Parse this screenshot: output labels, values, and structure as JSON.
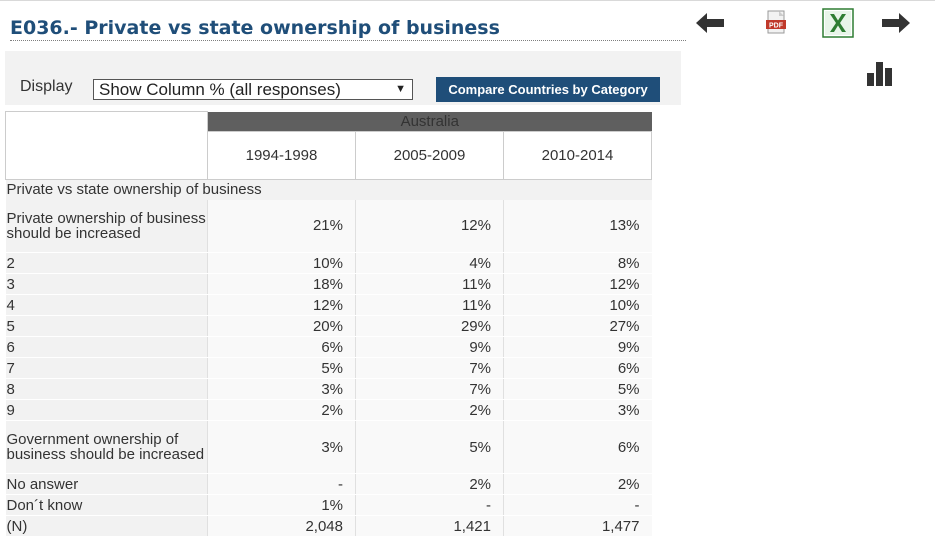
{
  "title": "E036.- Private vs state ownership of business",
  "toolbar": {
    "icons": [
      "arrow-left-icon",
      "pdf-icon",
      "excel-icon",
      "arrow-right-icon",
      "bar-chart-icon"
    ],
    "pdf_text": "PDF"
  },
  "controls": {
    "display_label": "Display",
    "select_value": "Show Column % (all responses)",
    "compare_label": "Compare Countries by Category"
  },
  "table": {
    "country": "Australia",
    "periods": [
      "1994-1998",
      "2005-2009",
      "2010-2014"
    ],
    "section": "Private vs state ownership of business",
    "rows": [
      {
        "label": "Private ownership of business should be increased",
        "values": [
          "21%",
          "12%",
          "13%"
        ]
      },
      {
        "label": "2",
        "values": [
          "10%",
          "4%",
          "8%"
        ]
      },
      {
        "label": "3",
        "values": [
          "18%",
          "11%",
          "12%"
        ]
      },
      {
        "label": "4",
        "values": [
          "12%",
          "11%",
          "10%"
        ]
      },
      {
        "label": "5",
        "values": [
          "20%",
          "29%",
          "27%"
        ]
      },
      {
        "label": "6",
        "values": [
          "6%",
          "9%",
          "9%"
        ]
      },
      {
        "label": "7",
        "values": [
          "5%",
          "7%",
          "6%"
        ]
      },
      {
        "label": "8",
        "values": [
          "3%",
          "7%",
          "5%"
        ]
      },
      {
        "label": "9",
        "values": [
          "2%",
          "2%",
          "3%"
        ]
      },
      {
        "label": "Government ownership of business should be increased",
        "values": [
          "3%",
          "5%",
          "6%"
        ]
      },
      {
        "label": "No answer",
        "values": [
          "-",
          "2%",
          "2%"
        ]
      },
      {
        "label": "Don´t know",
        "values": [
          "1%",
          "-",
          "-"
        ]
      },
      {
        "label": "(N)",
        "values": [
          "2,048",
          "1,421",
          "1,477"
        ]
      }
    ]
  },
  "colors": {
    "title": "#1f4e79",
    "compare_button": "#1f4e79",
    "country_header": "#5f5f5f",
    "n_row_text": "#2c2c9a"
  }
}
